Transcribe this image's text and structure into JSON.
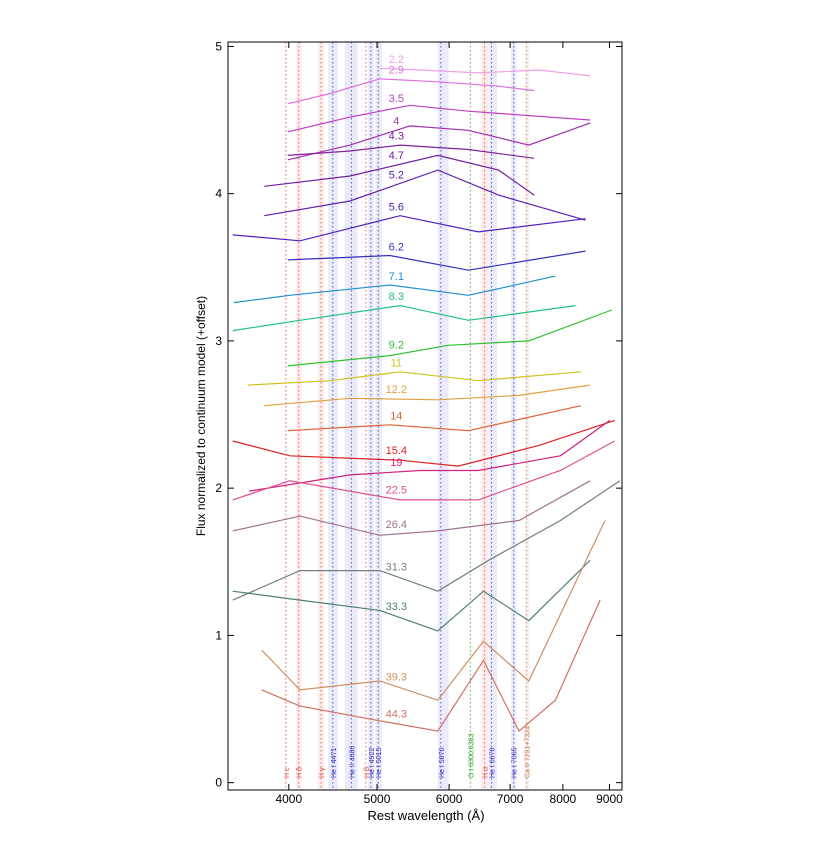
{
  "chart_data": {
    "type": "line",
    "xlabel": "Rest wavelength (Å)",
    "ylabel": "Flux normalized to continuum model (+offset)",
    "xscale": "log",
    "xlim": [
      3430,
      9290
    ],
    "ylim": [
      -0.05,
      5.03
    ],
    "xticks": [
      4000,
      5000,
      6000,
      7000,
      8000,
      9000
    ],
    "yticks": [
      0,
      1,
      2,
      3,
      4,
      5
    ],
    "lines": [
      {
        "label": "H ε",
        "x": 3970,
        "color": "#e04040"
      },
      {
        "label": "H δ",
        "x": 4102,
        "color": "#e04040",
        "band": [
          4075,
          4130
        ]
      },
      {
        "label": "H γ",
        "x": 4340,
        "color": "#e04040",
        "band": [
          4305,
          4375
        ]
      },
      {
        "label": "He I 4471",
        "x": 4471,
        "color": "#3030c0",
        "band": [
          4420,
          4530
        ]
      },
      {
        "label": "He II 4686",
        "x": 4686,
        "color": "#3030c0",
        "band": [
          4610,
          4760
        ]
      },
      {
        "label": "H β",
        "x": 4861,
        "color": "#e04040"
      },
      {
        "label": "He I 4922",
        "x": 4922,
        "color": "#3030c0",
        "band": [
          4890,
          4960
        ]
      },
      {
        "label": "He I 5015",
        "x": 5015,
        "color": "#3030c0",
        "band": [
          4980,
          5060
        ]
      },
      {
        "label": "He I 5876",
        "x": 5876,
        "color": "#3030c0",
        "band": [
          5830,
          5990
        ]
      },
      {
        "label": "O I 6300,6363",
        "x": 6330,
        "color": "#20a020"
      },
      {
        "label": "H α",
        "x": 6563,
        "color": "#e04040",
        "band": [
          6500,
          6630
        ]
      },
      {
        "label": "He I 6678",
        "x": 6678,
        "color": "#3030c0",
        "band": [
          6640,
          6770
        ]
      },
      {
        "label": "He I 7065",
        "x": 7065,
        "color": "#3030c0",
        "band": [
          7020,
          7110
        ]
      },
      {
        "label": "Ca II 7291+7324",
        "x": 7300,
        "color": "#c08060",
        "band": [
          7270,
          7350
        ]
      }
    ],
    "series": [
      {
        "name": "2.2",
        "color": "#f0a0e8",
        "x": [
          5035,
          5570,
          6460,
          7530,
          8570
        ],
        "values": [
          4.85,
          4.84,
          4.82,
          4.84,
          4.8
        ]
      },
      {
        "name": "2.9",
        "color": "#e070e0",
        "x": [
          3990,
          4440,
          5035,
          5830,
          6800,
          7440
        ],
        "values": [
          4.61,
          4.68,
          4.78,
          4.76,
          4.73,
          4.7
        ]
      },
      {
        "name": "3.5",
        "color": "#c040c0",
        "x": [
          3990,
          4670,
          5435,
          6300,
          7340,
          8570
        ],
        "values": [
          4.42,
          4.52,
          4.6,
          4.56,
          4.53,
          4.5
        ]
      },
      {
        "name": "4",
        "color": "#a030b0",
        "x": [
          3990,
          4670,
          5435,
          6300,
          7340,
          8570
        ],
        "values": [
          4.23,
          4.33,
          4.46,
          4.43,
          4.33,
          4.48
        ]
      },
      {
        "name": "4.3",
        "color": "#8020a0",
        "x": [
          3990,
          4670,
          5300,
          6300,
          7440
        ],
        "values": [
          4.26,
          4.29,
          4.33,
          4.3,
          4.24
        ]
      },
      {
        "name": "4.7",
        "color": "#7020a0",
        "x": [
          3760,
          4670,
          5830,
          6800,
          7440
        ],
        "values": [
          4.05,
          4.12,
          4.26,
          4.16,
          3.99
        ]
      },
      {
        "name": "5.2",
        "color": "#6020b0",
        "x": [
          3760,
          4670,
          5830,
          6800,
          8470
        ],
        "values": [
          3.85,
          3.95,
          4.16,
          3.99,
          3.82
        ]
      },
      {
        "name": "5.6",
        "color": "#5020c0",
        "x": [
          3471,
          4115,
          5300,
          6460,
          8470
        ],
        "values": [
          3.72,
          3.68,
          3.85,
          3.74,
          3.83
        ]
      },
      {
        "name": "6.2",
        "color": "#3030c0",
        "x": [
          3990,
          5165,
          6300,
          8470
        ],
        "values": [
          3.55,
          3.58,
          3.48,
          3.61
        ]
      },
      {
        "name": "7.1",
        "color": "#2090d0",
        "x": [
          3480,
          4010,
          5165,
          6300,
          7850
        ],
        "values": [
          3.26,
          3.31,
          3.38,
          3.31,
          3.44
        ]
      },
      {
        "name": "8.3",
        "color": "#20c080",
        "x": [
          3471,
          4115,
          5300,
          6300,
          8260
        ],
        "values": [
          3.07,
          3.14,
          3.24,
          3.14,
          3.24
        ]
      },
      {
        "name": "9.2",
        "color": "#30c030",
        "x": [
          3990,
          5165,
          5985,
          7340,
          9050
        ],
        "values": [
          2.83,
          2.9,
          2.97,
          3.0,
          3.21
        ]
      },
      {
        "name": "11",
        "color": "#d0c020",
        "x": [
          3605,
          4440,
          5300,
          6460,
          8370
        ],
        "values": [
          2.7,
          2.73,
          2.79,
          2.73,
          2.79
        ]
      },
      {
        "name": "12.2",
        "color": "#e0a040",
        "x": [
          3760,
          4670,
          5830,
          7160,
          8570
        ],
        "values": [
          2.56,
          2.61,
          2.6,
          2.63,
          2.7
        ]
      },
      {
        "name": "14",
        "color": "#e06030",
        "x": [
          3990,
          5165,
          6300,
          8370
        ],
        "values": [
          2.39,
          2.43,
          2.39,
          2.56
        ]
      },
      {
        "name": "15.4",
        "color": "#e02020",
        "x": [
          3471,
          4010,
          5300,
          6140,
          7530,
          9120
        ],
        "values": [
          2.32,
          2.22,
          2.19,
          2.15,
          2.29,
          2.46
        ]
      },
      {
        "name": "19",
        "color": "#d02080",
        "x": [
          3620,
          4670,
          5570,
          6460,
          7950,
          9010
        ],
        "values": [
          1.98,
          2.09,
          2.12,
          2.12,
          2.22,
          2.46
        ]
      },
      {
        "name": "22.5",
        "color": "#e05090",
        "x": [
          3471,
          4010,
          5300,
          6460,
          7950,
          9120
        ],
        "values": [
          1.92,
          2.05,
          1.92,
          1.92,
          2.12,
          2.32
        ]
      },
      {
        "name": "26.4",
        "color": "#a07090",
        "x": [
          3471,
          4115,
          5035,
          5830,
          7160,
          8570
        ],
        "values": [
          1.71,
          1.81,
          1.68,
          1.71,
          1.78,
          2.05
        ]
      },
      {
        "name": "31.3",
        "color": "#708080",
        "x": [
          3471,
          4115,
          5035,
          5830,
          6630,
          7950,
          9240
        ],
        "values": [
          1.24,
          1.44,
          1.44,
          1.3,
          1.51,
          1.78,
          2.05
        ]
      },
      {
        "name": "33.3",
        "color": "#508070",
        "x": [
          3471,
          4115,
          5035,
          5830,
          6545,
          7340,
          8570
        ],
        "values": [
          1.3,
          1.24,
          1.17,
          1.03,
          1.3,
          1.1,
          1.51
        ]
      },
      {
        "name": "39.3",
        "color": "#d09060",
        "x": [
          3735,
          4115,
          5035,
          5830,
          6545,
          7340,
          8900
        ],
        "values": [
          0.9,
          0.63,
          0.69,
          0.56,
          0.96,
          0.69,
          1.78
        ]
      },
      {
        "name": "44.3",
        "color": "#d07060",
        "x": [
          3735,
          4115,
          5035,
          5830,
          6545,
          7160,
          7850,
          8790
        ],
        "values": [
          0.63,
          0.52,
          0.42,
          0.35,
          0.83,
          0.35,
          0.56,
          1.24
        ]
      }
    ]
  }
}
